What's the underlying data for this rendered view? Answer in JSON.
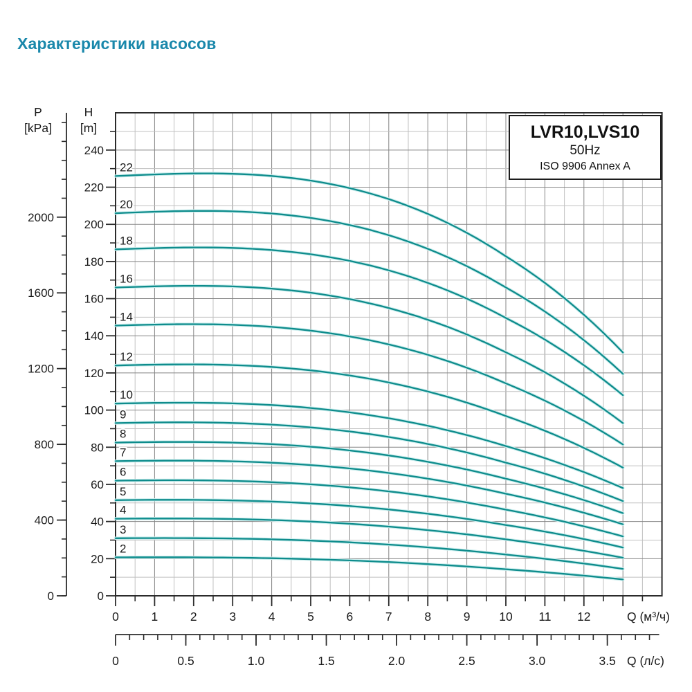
{
  "page": {
    "title": "Характеристики насосов"
  },
  "info_box": {
    "model": "LVR10,LVS10",
    "frequency": "50Hz",
    "standard": "ISO 9906 Annex A"
  },
  "colors": {
    "title": "#1a88ab",
    "curve": "#0e8c8c",
    "curve_halo": "#cdeeee",
    "grid_minor": "#c0c0c0",
    "grid_major": "#858585",
    "axis": "#2b2b2b",
    "text": "#1a1a1a"
  },
  "chart_data": {
    "type": "line",
    "title": "LVR10,LVS10 50Hz ISO 9906 Annex A",
    "xlabel": "Q (м³/ч)",
    "ylabel": "H [m]",
    "x_axis_primary": {
      "label": "Q (м³/ч)",
      "tick_labels": [
        0,
        1,
        2,
        3,
        4,
        5,
        6,
        7,
        8,
        9,
        10,
        11,
        12
      ],
      "minor_step": 0.5,
      "minor_max": 13.5,
      "major_max": 13,
      "axis_max": 14
    },
    "x_axis_secondary": {
      "label": "Q (л/с)",
      "tick_labels": [
        "0",
        "0.5",
        "1.0",
        "1.5",
        "2.0",
        "2.5",
        "3.0",
        "3.5"
      ],
      "tick_values": [
        0,
        0.5,
        1.0,
        1.5,
        2.0,
        2.5,
        3.0,
        3.5
      ],
      "minor_step": 0.1,
      "minor_max": 3.8,
      "m3h_per_ls": 3.6
    },
    "y_axis_h": {
      "title": "H",
      "unit": "[m]",
      "tick_labels": [
        240,
        220,
        200,
        180,
        160,
        140,
        120,
        100,
        80,
        60,
        40,
        20,
        0
      ],
      "minor_step": 10,
      "minor_max": 250,
      "plot_max": 260
    },
    "y_axis_p": {
      "title": "P",
      "unit": "[kPa]",
      "tick_labels": [
        2000,
        1600,
        1200,
        800,
        400,
        0
      ],
      "major_step": 400,
      "minor_step": 100,
      "minor_max": 2500,
      "kpa_per_m": 9.81
    },
    "q_end_m3h": 13,
    "series": [
      {
        "stages": "22",
        "h_start": 226,
        "h_end": 131
      },
      {
        "stages": "20",
        "h_start": 206,
        "h_end": 119.5
      },
      {
        "stages": "18",
        "h_start": 186.5,
        "h_end": 108
      },
      {
        "stages": "16",
        "h_start": 166,
        "h_end": 93
      },
      {
        "stages": "14",
        "h_start": 145.5,
        "h_end": 81.5
      },
      {
        "stages": "12",
        "h_start": 124,
        "h_end": 69
      },
      {
        "stages": "10",
        "h_start": 103.5,
        "h_end": 58
      },
      {
        "stages": "9",
        "h_start": 93,
        "h_end": 51
      },
      {
        "stages": "8",
        "h_start": 82.5,
        "h_end": 44.5
      },
      {
        "stages": "7",
        "h_start": 72.5,
        "h_end": 38.5
      },
      {
        "stages": "6",
        "h_start": 62,
        "h_end": 32
      },
      {
        "stages": "5",
        "h_start": 51.5,
        "h_end": 26
      },
      {
        "stages": "4",
        "h_start": 41.5,
        "h_end": 20.5
      },
      {
        "stages": "3",
        "h_start": 31,
        "h_end": 14.5
      },
      {
        "stages": "2",
        "h_start": 20.7,
        "h_end": 8.8
      }
    ]
  }
}
